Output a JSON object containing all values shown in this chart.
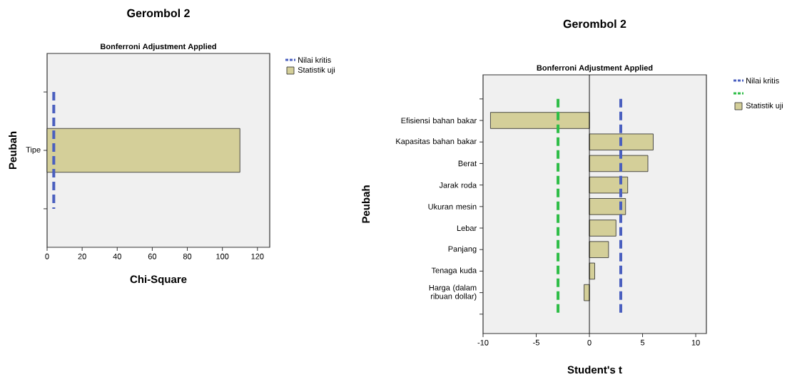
{
  "chart_data": [
    {
      "type": "bar",
      "title": "Gerombol 2",
      "subtitle": "Bonferroni Adjustment Applied",
      "xlabel": "Chi-Square",
      "ylabel": "Peubah",
      "orientation": "horizontal",
      "categories": [
        "Tipe"
      ],
      "series": [
        {
          "name": "Statistik uji",
          "color": "#d4cf99",
          "values": [
            110
          ]
        }
      ],
      "xlim": [
        0,
        127
      ],
      "xticks": [
        0,
        20,
        40,
        60,
        80,
        100,
        120
      ],
      "ref_lines": [
        {
          "axis": "x",
          "value": 3.8,
          "label": "Nilai kritis",
          "color": "#4a5fbf",
          "line_style": "dashed"
        }
      ],
      "legend": "top right"
    },
    {
      "type": "bar",
      "title": "Gerombol 2",
      "subtitle": "Bonferroni Adjustment Applied",
      "xlabel": "Student's t",
      "ylabel": "Peubah",
      "orientation": "horizontal",
      "categories": [
        null,
        "Efisiensi bahan bakar",
        "Kapasitas bahan bakar",
        "Berat",
        "Jarak roda",
        "Ukuran mesin",
        "Lebar",
        "Panjang",
        "Tenaga kuda",
        "Harga (dalam ribuan dollar)",
        null
      ],
      "series": [
        {
          "name": "Statistik uji",
          "color": "#d4cf99",
          "values": [
            null,
            -9.3,
            6.0,
            5.5,
            3.6,
            3.4,
            2.5,
            1.8,
            0.5,
            -0.5,
            null
          ]
        }
      ],
      "xlim": [
        -10,
        11
      ],
      "xticks": [
        -10,
        -5,
        0,
        5,
        10
      ],
      "ref_lines": [
        {
          "axis": "x",
          "value": 2.95,
          "label": "Nilai kritis",
          "color": "#4a5fbf",
          "line_style": "dashed"
        },
        {
          "axis": "x",
          "value": -2.95,
          "color": "#2ebd47",
          "line_style": "dashed"
        }
      ],
      "legend": "top right"
    }
  ]
}
